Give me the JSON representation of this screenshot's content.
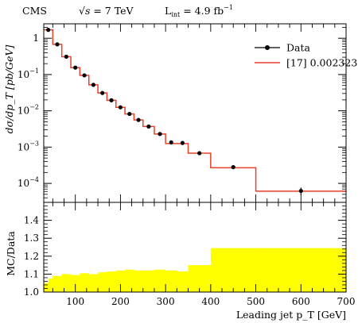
{
  "header": {
    "experiment": "CMS",
    "energy_prefix": "√",
    "energy_var": "s",
    "energy_value": " = 7 TeV",
    "lumi_main": "L",
    "lumi_sub": "int",
    "lumi_value": " = 4.9 fb",
    "lumi_exp": "−1"
  },
  "chart_data": [
    {
      "type": "line",
      "ylabel": "dσ/dp_T [pb/GeV]",
      "yscale": "log",
      "xlim": [
        30,
        700
      ],
      "ylim": [
        3e-05,
        2.5
      ],
      "yticks": [
        {
          "value": 1,
          "label": "1",
          "exp": ""
        },
        {
          "value": 0.1,
          "label": "10",
          "exp": "−1"
        },
        {
          "value": 0.01,
          "label": "10",
          "exp": "−2"
        },
        {
          "value": 0.001,
          "label": "10",
          "exp": "−3"
        },
        {
          "value": 0.0001,
          "label": "10",
          "exp": "−4"
        }
      ],
      "bin_edges": [
        30,
        50,
        70,
        90,
        110,
        130,
        150,
        170,
        190,
        210,
        230,
        250,
        275,
        300,
        325,
        350,
        400,
        500,
        700
      ],
      "series": [
        {
          "name": "Data",
          "style": "points",
          "color": "#000000",
          "x": [
            40,
            60,
            80,
            100,
            120,
            140,
            160,
            180,
            200,
            220,
            240,
            262.5,
            287.5,
            312.5,
            337.5,
            375,
            450,
            600
          ],
          "y": [
            1.7,
            0.68,
            0.31,
            0.155,
            0.095,
            0.052,
            0.031,
            0.0195,
            0.0125,
            0.0082,
            0.0056,
            0.0037,
            0.0023,
            0.00135,
            0.0013,
            0.00068,
            0.00028,
            6.2e-05
          ],
          "yerr_up": [
            0,
            0,
            0,
            0,
            0,
            0,
            0,
            0,
            0,
            0,
            0,
            0,
            0,
            0,
            0,
            0,
            3e-05,
            1.5e-05
          ],
          "yerr_down": [
            0,
            0,
            0,
            0,
            0,
            0,
            0,
            0,
            0,
            0,
            0,
            0,
            0,
            0,
            0,
            0,
            3e-05,
            1.5e-05
          ]
        },
        {
          "name": "[17] 0.002323",
          "style": "histogram",
          "color": "#e8402a",
          "y": [
            1.7,
            0.68,
            0.31,
            0.155,
            0.095,
            0.052,
            0.031,
            0.0195,
            0.0125,
            0.0082,
            0.0056,
            0.0037,
            0.0023,
            0.00125,
            0.00125,
            0.00068,
            0.00027,
            6.1e-05
          ]
        }
      ]
    },
    {
      "type": "bar",
      "ylabel": "MC/Data",
      "xlabel": "Leading jet p_T [GeV]",
      "xlim": [
        30,
        700
      ],
      "ylim": [
        1.0,
        1.5
      ],
      "xticks": [
        100,
        200,
        300,
        400,
        500,
        600,
        700
      ],
      "yticks": [
        1.0,
        1.1,
        1.2,
        1.3,
        1.4
      ],
      "bin_edges": [
        30,
        40,
        50,
        70,
        90,
        110,
        130,
        150,
        170,
        190,
        210,
        230,
        250,
        275,
        300,
        325,
        350,
        400,
        500,
        700
      ],
      "band_low": 1.0,
      "band_high": [
        1.05,
        1.075,
        1.09,
        1.1,
        1.095,
        1.105,
        1.1,
        1.11,
        1.115,
        1.12,
        1.125,
        1.12,
        1.12,
        1.125,
        1.12,
        1.115,
        1.15,
        1.245,
        1.245
      ],
      "band_color": "#ffff00"
    }
  ]
}
